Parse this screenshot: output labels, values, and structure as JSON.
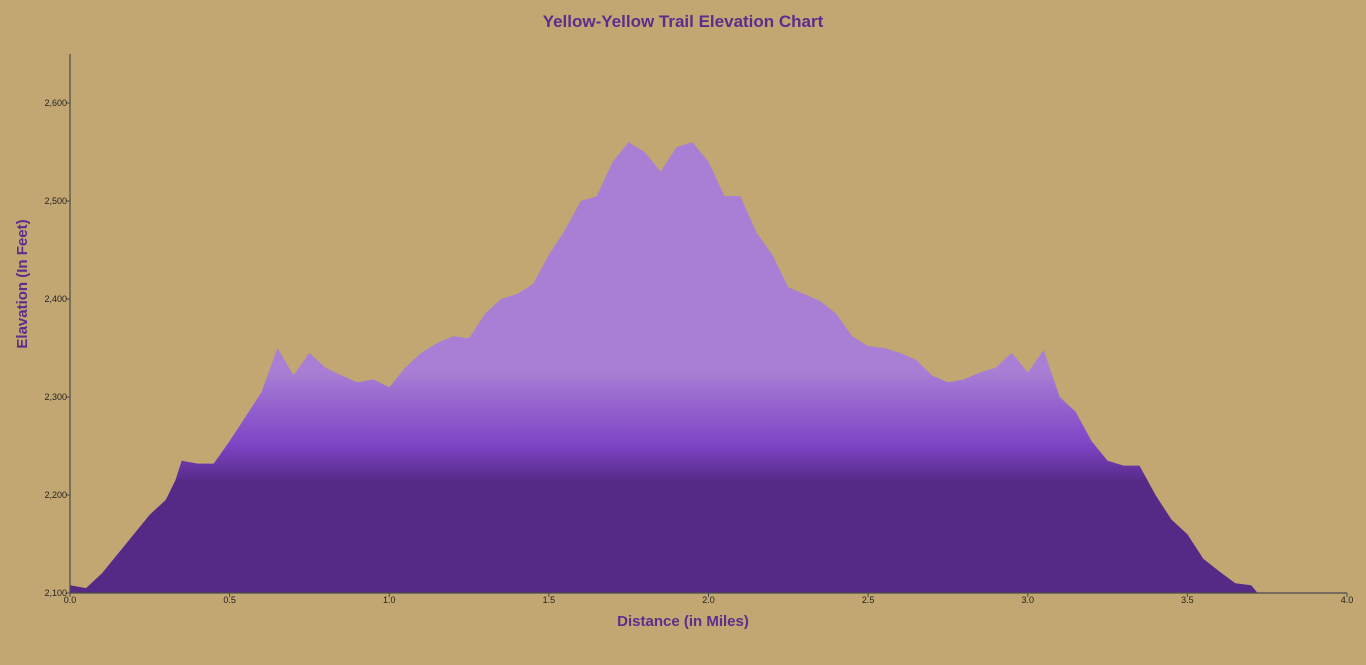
{
  "colors": {
    "background": "#c2a773",
    "title": "#5b2d8c",
    "area_top": "#a87fd4",
    "area_mid": "#7e44c6",
    "area_bottom": "#552a86",
    "axis": "#4a4a4a"
  },
  "chart_data": {
    "type": "area",
    "title": "Yellow-Yellow Trail Elevation Chart",
    "xlabel": "Distance (in Miles)",
    "ylabel": "Elavation (In Feet)",
    "xlim": [
      0,
      4
    ],
    "ylim": [
      2100,
      2650
    ],
    "x_ticks": [
      {
        "value": 0.0,
        "label": "0.0"
      },
      {
        "value": 0.5,
        "label": "0.5"
      },
      {
        "value": 1.0,
        "label": "1.0"
      },
      {
        "value": 1.5,
        "label": "1.5"
      },
      {
        "value": 2.0,
        "label": "2.0"
      },
      {
        "value": 2.5,
        "label": "2.5"
      },
      {
        "value": 3.0,
        "label": "3.0"
      },
      {
        "value": 3.5,
        "label": "3.5"
      },
      {
        "value": 4.0,
        "label": "4.0"
      }
    ],
    "y_ticks": [
      {
        "value": 2100,
        "label": "2,100"
      },
      {
        "value": 2200,
        "label": "2,200"
      },
      {
        "value": 2300,
        "label": "2,300"
      },
      {
        "value": 2400,
        "label": "2,400"
      },
      {
        "value": 2500,
        "label": "2,500"
      },
      {
        "value": 2600,
        "label": "2,600"
      }
    ],
    "grid": false,
    "legend": "none",
    "series": [
      {
        "x": [
          0.0,
          0.05,
          0.1,
          0.15,
          0.2,
          0.25,
          0.3,
          0.33,
          0.35,
          0.4,
          0.45,
          0.5,
          0.55,
          0.6,
          0.65,
          0.7,
          0.75,
          0.8,
          0.85,
          0.9,
          0.95,
          1.0,
          1.05,
          1.1,
          1.15,
          1.2,
          1.25,
          1.3,
          1.35,
          1.4,
          1.45,
          1.5,
          1.55,
          1.6,
          1.65,
          1.7,
          1.75,
          1.8,
          1.85,
          1.9,
          1.95,
          2.0,
          2.05,
          2.1,
          2.15,
          2.2,
          2.25,
          2.3,
          2.35,
          2.4,
          2.45,
          2.5,
          2.55,
          2.6,
          2.65,
          2.7,
          2.75,
          2.8,
          2.85,
          2.9,
          2.95,
          3.0,
          3.05,
          3.1,
          3.15,
          3.2,
          3.25,
          3.3,
          3.35,
          3.4,
          3.45,
          3.5,
          3.55,
          3.6,
          3.65,
          3.7,
          3.72
        ],
        "y": [
          2108,
          2105,
          2120,
          2140,
          2160,
          2180,
          2195,
          2215,
          2235,
          2232,
          2232,
          2255,
          2280,
          2305,
          2350,
          2322,
          2345,
          2330,
          2322,
          2315,
          2318,
          2310,
          2330,
          2345,
          2355,
          2362,
          2360,
          2385,
          2400,
          2405,
          2415,
          2445,
          2470,
          2500,
          2505,
          2540,
          2560,
          2550,
          2530,
          2555,
          2560,
          2540,
          2505,
          2505,
          2468,
          2445,
          2412,
          2405,
          2398,
          2385,
          2362,
          2352,
          2350,
          2345,
          2338,
          2322,
          2315,
          2318,
          2325,
          2330,
          2345,
          2325,
          2348,
          2300,
          2285,
          2255,
          2235,
          2230,
          2230,
          2200,
          2175,
          2160,
          2135,
          2122,
          2110,
          2108,
          2100
        ]
      }
    ]
  }
}
